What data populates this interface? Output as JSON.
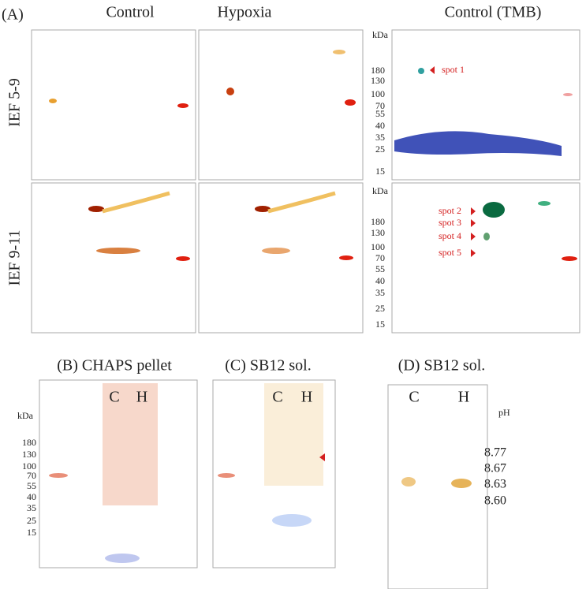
{
  "panel_a": {
    "label": "(A)",
    "columns": [
      "Control",
      "Hypoxia",
      "Control (TMB)"
    ],
    "rows": [
      "IEF 5-9",
      "IEF 9-11"
    ],
    "kda_unit_top": "kDa",
    "ladder_top": [
      "180",
      "130",
      "100",
      "70",
      "55",
      "40",
      "35",
      "25",
      "15"
    ],
    "kda_unit_bottom": "kDa",
    "ladder_bottom": [
      "180",
      "130",
      "100",
      "70",
      "55",
      "40",
      "35",
      "25",
      "15"
    ],
    "spots_top": [
      "spot 1"
    ],
    "spots_bottom": [
      "spot 2",
      "spot 3",
      "spot 4",
      "spot 5"
    ]
  },
  "panel_b": {
    "title": "(B) CHAPS pellet",
    "lanes": [
      "C",
      "H"
    ],
    "kda_unit": "kDa",
    "ladder": [
      "180",
      "130",
      "100",
      "70",
      "55",
      "40",
      "35",
      "25",
      "15"
    ]
  },
  "panel_c": {
    "title": "(C) SB12 sol.",
    "lanes": [
      "C",
      "H"
    ]
  },
  "panel_d": {
    "title": "(D) SB12 sol.",
    "lanes": [
      "C",
      "H"
    ],
    "ph_unit": "pH",
    "ph_values": [
      "8.77",
      "8.67",
      "8.63",
      "8.60"
    ]
  }
}
